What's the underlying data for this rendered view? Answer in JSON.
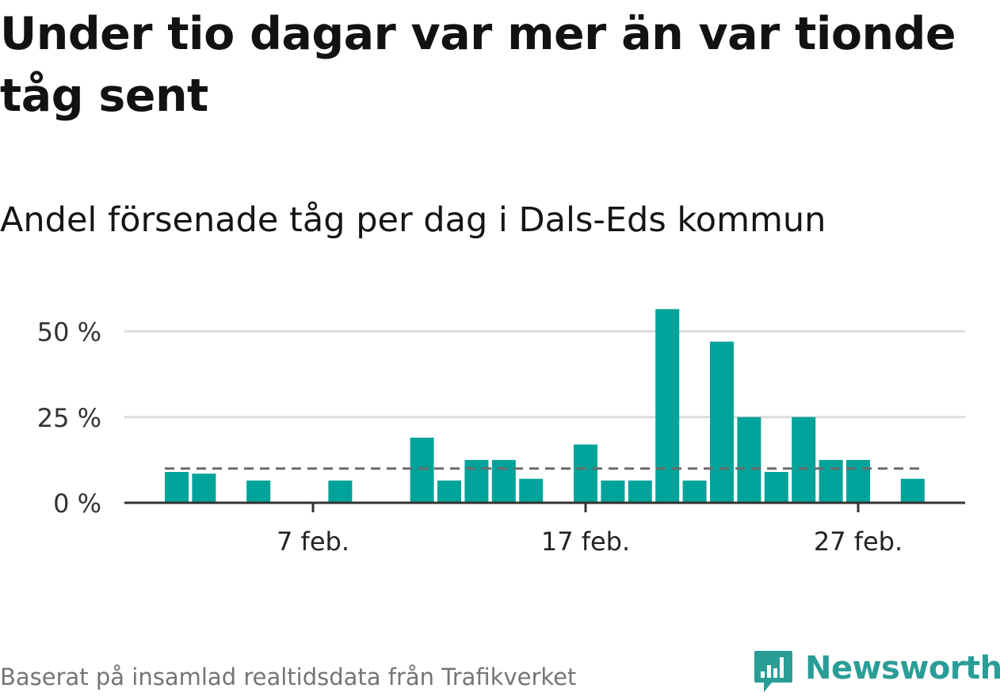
{
  "title": "Under tio dagar var mer än var tionde tåg sent",
  "subtitle": "Andel försenade tåg per dag i Dals-Eds kommun",
  "source": "Baserat på insamlad realtidsdata från Trafikverket",
  "logo_text": "Newsworthy",
  "colors": {
    "bar": "#00a39a",
    "reference_line": "#6b6b6b",
    "grid": "#dddddd",
    "axis": "#333333"
  },
  "chart_data": {
    "type": "bar",
    "x": [
      "2 feb.",
      "3 feb.",
      "4 feb.",
      "5 feb.",
      "6 feb.",
      "7 feb.",
      "8 feb.",
      "9 feb.",
      "10 feb.",
      "11 feb.",
      "12 feb.",
      "13 feb.",
      "14 feb.",
      "15 feb.",
      "16 feb.",
      "17 feb.",
      "18 feb.",
      "19 feb.",
      "20 feb.",
      "21 feb.",
      "22 feb.",
      "23 feb.",
      "24 feb.",
      "25 feb.",
      "26 feb.",
      "27 feb.",
      "28 feb.",
      "29 feb."
    ],
    "values": [
      9,
      8.5,
      null,
      6.5,
      null,
      null,
      6.5,
      null,
      null,
      19,
      6.5,
      12.5,
      12.5,
      7,
      null,
      17,
      6.5,
      6.5,
      56.5,
      6.5,
      47,
      25,
      9,
      25,
      12.5,
      12.5,
      null,
      7
    ],
    "reference_value": 10,
    "ylim": [
      0,
      60
    ],
    "y_ticks": [
      {
        "value": 0,
        "label": "0 %"
      },
      {
        "value": 25,
        "label": "25 %"
      },
      {
        "value": 50,
        "label": "50 %"
      }
    ],
    "x_ticks": [
      {
        "x": "7 feb.",
        "label": "7 feb."
      },
      {
        "x": "17 feb.",
        "label": "17 feb."
      },
      {
        "x": "27 feb.",
        "label": "27 feb."
      }
    ],
    "grid": true,
    "legend": "none"
  }
}
